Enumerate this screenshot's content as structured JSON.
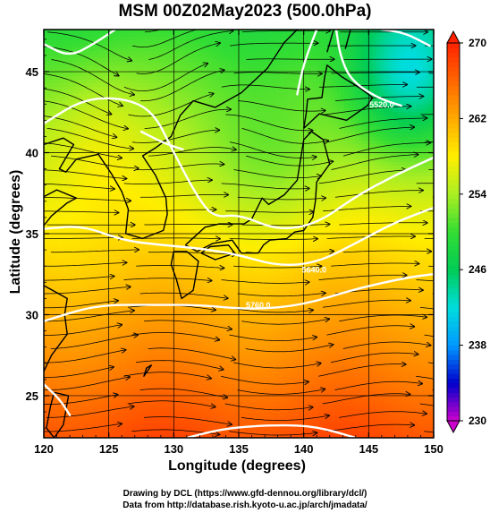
{
  "title": "MSM 00Z02May2023 (500.0hPa)",
  "chart_data": {
    "type": "heatmap",
    "title": "MSM 00Z02May2023 (500.0hPa)",
    "xlabel": "Longitude (degrees)",
    "ylabel": "Latitude  (degrees)",
    "xlim": [
      120,
      150
    ],
    "ylim": [
      22.4,
      47.6
    ],
    "x_ticks": [
      120,
      125,
      130,
      135,
      140,
      145,
      150
    ],
    "y_ticks": [
      25,
      30,
      35,
      40,
      45
    ],
    "colorbar": {
      "range": [
        230,
        270
      ],
      "ticks": [
        230,
        238,
        246,
        254,
        262,
        270
      ],
      "colors": [
        "#cc00cc",
        "#0000cc",
        "#0099ff",
        "#00dddd",
        "#00cc55",
        "#33dd33",
        "#aaee22",
        "#ffee00",
        "#ffaa00",
        "#ff6600",
        "#ff2200"
      ]
    },
    "contour_labels": [
      {
        "text": "5640.0",
        "x": 140.8,
        "y": 32.6
      },
      {
        "text": "5760.0",
        "x": 136.5,
        "y": 30.4
      },
      {
        "text": "5520.0",
        "x": 146.0,
        "y": 42.8
      }
    ],
    "contour_paths": [
      [
        [
          120,
          46.7
        ],
        [
          122,
          45.9
        ],
        [
          124,
          46.8
        ],
        [
          125.5,
          47.6
        ]
      ],
      [
        [
          120,
          41.8
        ],
        [
          123,
          43.3
        ],
        [
          126,
          43.4
        ],
        [
          128.4,
          42.6
        ],
        [
          130,
          40
        ],
        [
          132,
          37
        ],
        [
          133.2,
          36
        ],
        [
          135,
          36.2
        ],
        [
          138,
          35.2
        ],
        [
          141,
          35.6
        ],
        [
          144,
          37.3
        ],
        [
          147,
          38.6
        ],
        [
          150,
          39.7
        ]
      ],
      [
        [
          120,
          35.3
        ],
        [
          123,
          35.5
        ],
        [
          126,
          34.6
        ],
        [
          129,
          34.3
        ],
        [
          132,
          34.1
        ],
        [
          135,
          33.7
        ],
        [
          138,
          33.0
        ],
        [
          141,
          33.2
        ],
        [
          144,
          34.4
        ],
        [
          147,
          35.7
        ],
        [
          150,
          36.6
        ]
      ],
      [
        [
          120,
          29.6
        ],
        [
          124,
          30.6
        ],
        [
          128,
          30.6
        ],
        [
          132,
          30.6
        ],
        [
          136,
          30.3
        ],
        [
          140,
          30.6
        ],
        [
          144,
          31.6
        ],
        [
          148,
          32.3
        ],
        [
          150,
          32.5
        ]
      ],
      [
        [
          131,
          22.4
        ],
        [
          134,
          23.0
        ],
        [
          138,
          23.2
        ],
        [
          141,
          23.1
        ],
        [
          144,
          22.4
        ]
      ],
      [
        [
          141,
          47.6
        ],
        [
          140,
          45.5
        ],
        [
          139.5,
          43.6
        ]
      ],
      [
        [
          142.5,
          47.6
        ],
        [
          142.8,
          46
        ],
        [
          143.6,
          44.5
        ],
        [
          145.6,
          43.4
        ],
        [
          147.5,
          42.9
        ]
      ],
      [
        [
          146,
          47.6
        ],
        [
          147.8,
          47.4
        ],
        [
          149.7,
          46.6
        ]
      ],
      [
        [
          127.5,
          41.3
        ],
        [
          129.2,
          40.6
        ],
        [
          130.7,
          40.2
        ]
      ],
      [
        [
          120,
          25.7
        ],
        [
          121.2,
          24.8
        ],
        [
          122,
          23.8
        ]
      ]
    ]
  }
}
